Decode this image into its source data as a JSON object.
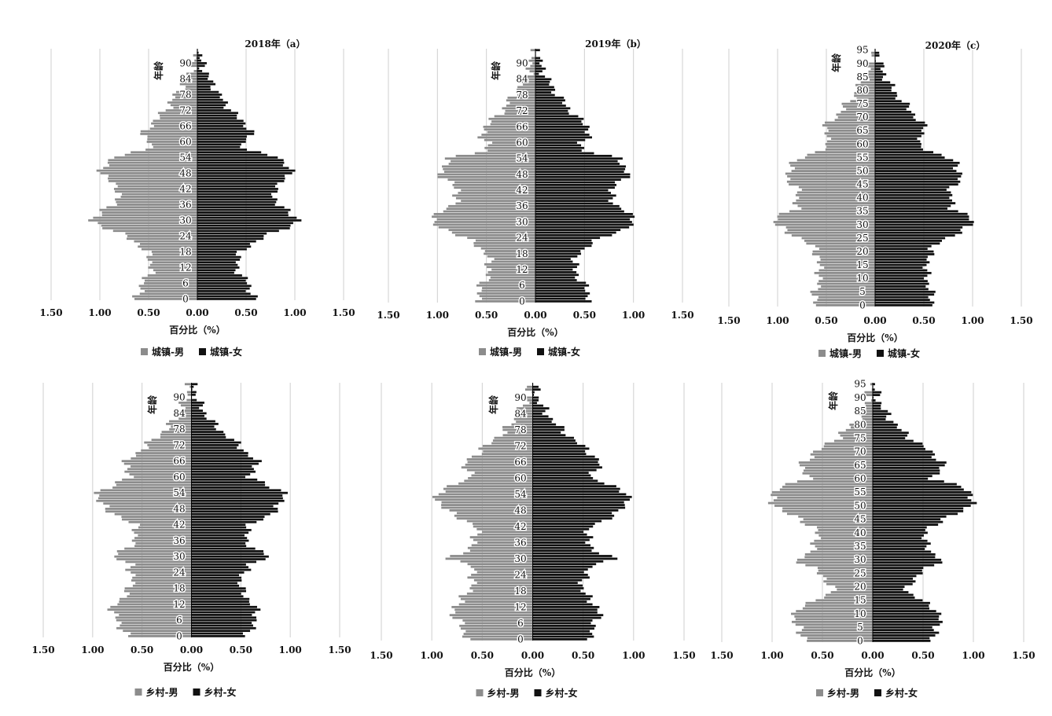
{
  "colors": {
    "male": "#8c8c8c",
    "female": "#111111",
    "grid": "#cfcfcf",
    "text": "#111111"
  },
  "chart_data": [
    {
      "type": "bar",
      "orientation": "horizontal-pyramid",
      "title": "2018年（a）",
      "ylabel": "年龄",
      "xlabel": "百分比（%）",
      "xticks": [
        "1.50",
        "1.00",
        "0.50",
        "0.00",
        "0.50",
        "1.00",
        "1.50"
      ],
      "yticks": [
        "0",
        "6",
        "12",
        "18",
        "24",
        "30",
        "36",
        "42",
        "48",
        "54",
        "60",
        "66",
        "72",
        "78",
        "84",
        "90"
      ],
      "xlim": [
        -1.5,
        1.5
      ],
      "age_max": 95,
      "legend": [
        "城镇-男",
        "城镇-女"
      ],
      "anchors_age": [
        0,
        3,
        6,
        9,
        12,
        15,
        18,
        21,
        24,
        27,
        30,
        33,
        36,
        39,
        42,
        45,
        48,
        51,
        54,
        57,
        60,
        63,
        66,
        69,
        72,
        75,
        78,
        81,
        84,
        87,
        90,
        93,
        95
      ],
      "male": [
        0.62,
        0.6,
        0.56,
        0.5,
        0.47,
        0.48,
        0.52,
        0.6,
        0.74,
        0.92,
        1.1,
        1.0,
        0.85,
        0.82,
        0.8,
        0.9,
        0.98,
        0.95,
        0.88,
        0.5,
        0.5,
        0.55,
        0.5,
        0.4,
        0.33,
        0.27,
        0.22,
        0.16,
        0.11,
        0.07,
        0.04,
        0.02,
        0.01
      ],
      "female": [
        0.58,
        0.55,
        0.52,
        0.45,
        0.4,
        0.41,
        0.45,
        0.55,
        0.7,
        0.9,
        1.05,
        0.95,
        0.82,
        0.8,
        0.78,
        0.88,
        0.96,
        0.92,
        0.85,
        0.48,
        0.48,
        0.55,
        0.52,
        0.42,
        0.35,
        0.28,
        0.22,
        0.17,
        0.12,
        0.08,
        0.05,
        0.03,
        0.01
      ]
    },
    {
      "type": "bar",
      "orientation": "horizontal-pyramid",
      "title": "2019年（b）",
      "ylabel": "年龄",
      "xlabel": "百分比（%）",
      "xticks": [
        "1.50",
        "1.00",
        "0.50",
        "0.00",
        "0.50",
        "1.00",
        "1.50"
      ],
      "yticks": [
        "0",
        "6",
        "12",
        "18",
        "24",
        "30",
        "36",
        "42",
        "48",
        "54",
        "60",
        "66",
        "72",
        "78",
        "84",
        "90"
      ],
      "xlim": [
        -1.5,
        1.5
      ],
      "age_max": 95,
      "legend": [
        "城镇-男",
        "城镇-女"
      ],
      "anchors_age": [
        0,
        3,
        6,
        9,
        12,
        15,
        18,
        21,
        24,
        27,
        30,
        33,
        36,
        39,
        42,
        45,
        48,
        51,
        54,
        57,
        60,
        63,
        66,
        69,
        72,
        75,
        78,
        81,
        84,
        87,
        90,
        93,
        95
      ],
      "male": [
        0.6,
        0.58,
        0.55,
        0.5,
        0.47,
        0.47,
        0.5,
        0.58,
        0.72,
        0.9,
        1.08,
        1.0,
        0.86,
        0.8,
        0.78,
        0.88,
        0.97,
        0.94,
        0.88,
        0.52,
        0.48,
        0.55,
        0.52,
        0.42,
        0.34,
        0.28,
        0.22,
        0.16,
        0.11,
        0.07,
        0.04,
        0.02,
        0.01
      ],
      "female": [
        0.56,
        0.54,
        0.5,
        0.44,
        0.4,
        0.4,
        0.44,
        0.53,
        0.68,
        0.88,
        1.03,
        0.96,
        0.83,
        0.78,
        0.76,
        0.86,
        0.94,
        0.91,
        0.85,
        0.5,
        0.46,
        0.55,
        0.54,
        0.44,
        0.36,
        0.29,
        0.23,
        0.17,
        0.12,
        0.08,
        0.05,
        0.03,
        0.01
      ]
    },
    {
      "type": "bar",
      "orientation": "horizontal-pyramid",
      "title": "2020年（c）",
      "ylabel": "年龄",
      "xlabel": "百分比（%）",
      "xticks": [
        "1.50",
        "1.00",
        "0.50",
        "0.00",
        "0.50",
        "1.00",
        "1.50"
      ],
      "yticks": [
        "0",
        "5",
        "10",
        "15",
        "20",
        "25",
        "30",
        "35",
        "40",
        "45",
        "50",
        "55",
        "60",
        "65",
        "70",
        "75",
        "80",
        "85",
        "90",
        "95"
      ],
      "xlim": [
        -1.5,
        1.5
      ],
      "age_max": 95,
      "legend": [
        "城镇-男",
        "城镇-女"
      ],
      "anchors_age": [
        0,
        3,
        6,
        9,
        12,
        15,
        18,
        21,
        24,
        27,
        30,
        33,
        36,
        39,
        42,
        45,
        48,
        51,
        54,
        57,
        60,
        63,
        66,
        69,
        72,
        75,
        78,
        81,
        84,
        87,
        90,
        93,
        95
      ],
      "male": [
        0.62,
        0.62,
        0.6,
        0.58,
        0.56,
        0.58,
        0.58,
        0.62,
        0.72,
        0.88,
        1.02,
        1.0,
        0.82,
        0.8,
        0.78,
        0.85,
        0.9,
        0.88,
        0.8,
        0.62,
        0.45,
        0.5,
        0.52,
        0.44,
        0.36,
        0.28,
        0.22,
        0.16,
        0.11,
        0.07,
        0.04,
        0.02,
        0.01
      ],
      "female": [
        0.6,
        0.58,
        0.56,
        0.54,
        0.52,
        0.54,
        0.55,
        0.58,
        0.68,
        0.85,
        1.0,
        0.96,
        0.8,
        0.78,
        0.76,
        0.82,
        0.88,
        0.85,
        0.8,
        0.6,
        0.42,
        0.48,
        0.52,
        0.44,
        0.38,
        0.3,
        0.23,
        0.17,
        0.12,
        0.08,
        0.05,
        0.03,
        0.01
      ]
    },
    {
      "type": "bar",
      "orientation": "horizontal-pyramid",
      "title": "",
      "ylabel": "年龄",
      "xlabel": "百分比（%）",
      "xticks": [
        "1.50",
        "1.00",
        "0.50",
        "0.00",
        "0.50",
        "1.00",
        "1.50"
      ],
      "yticks": [
        "0",
        "6",
        "12",
        "18",
        "24",
        "30",
        "36",
        "42",
        "48",
        "54",
        "60",
        "66",
        "72",
        "78",
        "84",
        "90"
      ],
      "xlim": [
        -1.5,
        1.5
      ],
      "age_max": 95,
      "legend": [
        "乡村-男",
        "乡村-女"
      ],
      "anchors_age": [
        0,
        3,
        6,
        9,
        12,
        15,
        18,
        21,
        24,
        27,
        30,
        33,
        36,
        39,
        42,
        45,
        48,
        51,
        54,
        57,
        60,
        63,
        66,
        69,
        72,
        75,
        78,
        81,
        84,
        87,
        90,
        93,
        95
      ],
      "male": [
        0.66,
        0.7,
        0.75,
        0.8,
        0.78,
        0.68,
        0.62,
        0.6,
        0.6,
        0.62,
        0.8,
        0.65,
        0.58,
        0.55,
        0.58,
        0.72,
        0.88,
        0.92,
        0.96,
        0.8,
        0.6,
        0.68,
        0.65,
        0.55,
        0.45,
        0.35,
        0.26,
        0.18,
        0.12,
        0.08,
        0.05,
        0.02,
        0.01
      ],
      "female": [
        0.56,
        0.6,
        0.65,
        0.66,
        0.62,
        0.55,
        0.5,
        0.5,
        0.52,
        0.6,
        0.8,
        0.62,
        0.56,
        0.55,
        0.6,
        0.75,
        0.88,
        0.9,
        0.95,
        0.78,
        0.56,
        0.66,
        0.66,
        0.56,
        0.48,
        0.38,
        0.28,
        0.2,
        0.14,
        0.09,
        0.05,
        0.03,
        0.01
      ]
    },
    {
      "type": "bar",
      "orientation": "horizontal-pyramid",
      "title": "",
      "ylabel": "年龄",
      "xlabel": "百分比（%）",
      "xticks": [
        "1.50",
        "1.00",
        "0.50",
        "0.00",
        "0.50",
        "1.00",
        "1.50"
      ],
      "yticks": [
        "0",
        "6",
        "12",
        "18",
        "24",
        "30",
        "36",
        "42",
        "48",
        "54",
        "60",
        "66",
        "72",
        "78",
        "84",
        "90"
      ],
      "xlim": [
        -1.5,
        1.5
      ],
      "age_max": 95,
      "legend": [
        "乡村-男",
        "乡村-女"
      ],
      "anchors_age": [
        0,
        3,
        6,
        9,
        12,
        15,
        18,
        21,
        24,
        27,
        30,
        33,
        36,
        39,
        42,
        45,
        48,
        51,
        54,
        57,
        60,
        63,
        66,
        69,
        72,
        75,
        78,
        81,
        84,
        87,
        90,
        93,
        95
      ],
      "male": [
        0.64,
        0.68,
        0.72,
        0.78,
        0.78,
        0.7,
        0.62,
        0.6,
        0.58,
        0.6,
        0.82,
        0.66,
        0.58,
        0.55,
        0.57,
        0.7,
        0.86,
        0.92,
        0.97,
        0.82,
        0.6,
        0.66,
        0.66,
        0.56,
        0.46,
        0.36,
        0.27,
        0.19,
        0.13,
        0.08,
        0.05,
        0.02,
        0.01
      ],
      "female": [
        0.56,
        0.58,
        0.62,
        0.66,
        0.64,
        0.56,
        0.5,
        0.49,
        0.52,
        0.58,
        0.8,
        0.62,
        0.55,
        0.54,
        0.58,
        0.74,
        0.88,
        0.92,
        0.96,
        0.8,
        0.56,
        0.64,
        0.66,
        0.58,
        0.49,
        0.39,
        0.29,
        0.21,
        0.14,
        0.09,
        0.05,
        0.03,
        0.01
      ]
    },
    {
      "type": "bar",
      "orientation": "horizontal-pyramid",
      "title": "",
      "ylabel": "年龄",
      "xlabel": "百分比（%）",
      "xticks": [
        "1.50",
        "1.00",
        "0.50",
        "0.00",
        "0.50",
        "1.00",
        "1.50"
      ],
      "yticks": [
        "0",
        "5",
        "10",
        "15",
        "20",
        "25",
        "30",
        "35",
        "40",
        "45",
        "50",
        "55",
        "60",
        "65",
        "70",
        "75",
        "80",
        "85",
        "90",
        "95"
      ],
      "xlim": [
        -1.5,
        1.5
      ],
      "age_max": 95,
      "legend": [
        "乡村-男",
        "乡村-女"
      ],
      "anchors_age": [
        0,
        3,
        6,
        9,
        12,
        15,
        18,
        21,
        24,
        27,
        30,
        33,
        36,
        39,
        42,
        45,
        48,
        51,
        54,
        57,
        60,
        63,
        66,
        69,
        72,
        75,
        78,
        81,
        84,
        87,
        90,
        93,
        95
      ],
      "male": [
        0.64,
        0.72,
        0.76,
        0.78,
        0.76,
        0.55,
        0.4,
        0.42,
        0.5,
        0.6,
        0.75,
        0.62,
        0.56,
        0.55,
        0.58,
        0.72,
        0.9,
        0.98,
        1.02,
        0.9,
        0.65,
        0.68,
        0.7,
        0.6,
        0.48,
        0.36,
        0.26,
        0.18,
        0.12,
        0.07,
        0.04,
        0.02,
        0.01
      ],
      "female": [
        0.56,
        0.62,
        0.66,
        0.66,
        0.62,
        0.48,
        0.34,
        0.36,
        0.44,
        0.55,
        0.68,
        0.58,
        0.52,
        0.52,
        0.56,
        0.7,
        0.9,
        0.98,
        1.0,
        0.88,
        0.6,
        0.66,
        0.7,
        0.6,
        0.5,
        0.38,
        0.28,
        0.2,
        0.14,
        0.08,
        0.05,
        0.03,
        0.01
      ]
    }
  ]
}
